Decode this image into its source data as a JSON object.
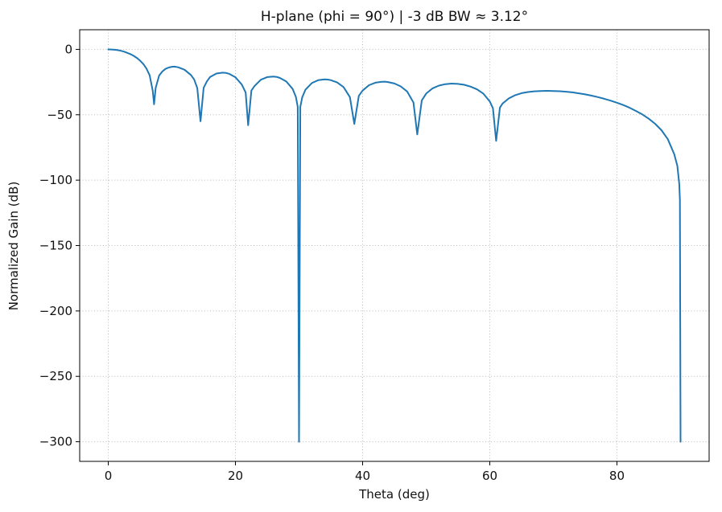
{
  "chart_data": {
    "type": "line",
    "title": "H-plane (phi = 90°)  |  -3 dB BW ≈ 3.12°",
    "xlabel": "Theta (deg)",
    "ylabel": "Normalized Gain (dB)",
    "xlim": [
      -4.5,
      94.5
    ],
    "ylim": [
      -315,
      15
    ],
    "xticks": [
      0,
      20,
      40,
      60,
      80
    ],
    "yticks": [
      0,
      -50,
      -100,
      -150,
      -200,
      -250,
      -300
    ],
    "grid": true,
    "legend": "none",
    "line_color": "#1f77b4",
    "series": [
      {
        "name": "H-plane normalized gain",
        "points": [
          [
            0,
            0
          ],
          [
            0.5,
            -0.1
          ],
          [
            1,
            -0.3
          ],
          [
            1.5,
            -0.6
          ],
          [
            2,
            -1.1
          ],
          [
            2.5,
            -1.8
          ],
          [
            3,
            -2.7
          ],
          [
            3.5,
            -3.7
          ],
          [
            4,
            -5.0
          ],
          [
            4.5,
            -6.6
          ],
          [
            5,
            -8.6
          ],
          [
            5.5,
            -11.2
          ],
          [
            6,
            -14.6
          ],
          [
            6.5,
            -19.8
          ],
          [
            7,
            -31.8
          ],
          [
            7.2,
            -42.0
          ],
          [
            7.45,
            -29.5
          ],
          [
            8,
            -20.0
          ],
          [
            8.5,
            -16.9
          ],
          [
            9,
            -14.9
          ],
          [
            9.5,
            -13.9
          ],
          [
            10,
            -13.3
          ],
          [
            10.4,
            -13.2
          ],
          [
            11,
            -13.7
          ],
          [
            12,
            -15.6
          ],
          [
            13,
            -19.6
          ],
          [
            13.5,
            -23.0
          ],
          [
            14,
            -29.6
          ],
          [
            14.5,
            -55.0
          ],
          [
            15,
            -29.4
          ],
          [
            15.5,
            -24.5
          ],
          [
            16,
            -21.2
          ],
          [
            17,
            -18.5
          ],
          [
            18,
            -17.8
          ],
          [
            18.5,
            -18.0
          ],
          [
            19,
            -18.7
          ],
          [
            20,
            -21.3
          ],
          [
            21,
            -26.9
          ],
          [
            21.6,
            -33.0
          ],
          [
            22,
            -58.0
          ],
          [
            22.5,
            -31.5
          ],
          [
            23,
            -28.1
          ],
          [
            24,
            -23.2
          ],
          [
            25,
            -21.2
          ],
          [
            26,
            -20.8
          ],
          [
            26.5,
            -21.1
          ],
          [
            27,
            -21.9
          ],
          [
            28,
            -24.6
          ],
          [
            29,
            -30.3
          ],
          [
            29.5,
            -36.3
          ],
          [
            29.8,
            -44.0
          ],
          [
            30,
            -300
          ],
          [
            30.2,
            -44.0
          ],
          [
            30.5,
            -36.6
          ],
          [
            31,
            -30.9
          ],
          [
            32,
            -25.8
          ],
          [
            33,
            -23.6
          ],
          [
            34,
            -23.0
          ],
          [
            34.5,
            -23.1
          ],
          [
            35,
            -23.5
          ],
          [
            36,
            -25.3
          ],
          [
            37,
            -28.8
          ],
          [
            38,
            -36.5
          ],
          [
            38.7,
            -57.0
          ],
          [
            39.4,
            -35.5
          ],
          [
            40,
            -31.5
          ],
          [
            41,
            -27.4
          ],
          [
            42,
            -25.5
          ],
          [
            43,
            -24.8
          ],
          [
            43.5,
            -24.7
          ],
          [
            44,
            -25.0
          ],
          [
            45,
            -26.1
          ],
          [
            46,
            -28.3
          ],
          [
            47,
            -32.2
          ],
          [
            48,
            -40.7
          ],
          [
            48.6,
            -65.0
          ],
          [
            49.3,
            -39.0
          ],
          [
            50,
            -33.8
          ],
          [
            51,
            -29.8
          ],
          [
            52,
            -27.7
          ],
          [
            53,
            -26.6
          ],
          [
            54,
            -26.2
          ],
          [
            55,
            -26.4
          ],
          [
            56,
            -27.1
          ],
          [
            57,
            -28.5
          ],
          [
            58,
            -30.6
          ],
          [
            59,
            -33.9
          ],
          [
            60,
            -39.8
          ],
          [
            60.5,
            -45.0
          ],
          [
            61,
            -70.0
          ],
          [
            61.6,
            -44.5
          ],
          [
            62,
            -41.5
          ],
          [
            63,
            -37.5
          ],
          [
            64,
            -35.0
          ],
          [
            65,
            -33.5
          ],
          [
            66,
            -32.6
          ],
          [
            67,
            -32.1
          ],
          [
            68,
            -31.8
          ],
          [
            69,
            -31.7
          ],
          [
            70,
            -31.8
          ],
          [
            71,
            -32.0
          ],
          [
            72,
            -32.4
          ],
          [
            73,
            -32.9
          ],
          [
            74,
            -33.6
          ],
          [
            75,
            -34.4
          ],
          [
            76,
            -35.4
          ],
          [
            77,
            -36.5
          ],
          [
            78,
            -37.8
          ],
          [
            79,
            -39.2
          ],
          [
            80,
            -40.8
          ],
          [
            81,
            -42.6
          ],
          [
            82,
            -44.7
          ],
          [
            83,
            -47.1
          ],
          [
            84,
            -49.8
          ],
          [
            85,
            -53.0
          ],
          [
            86,
            -56.9
          ],
          [
            87,
            -61.8
          ],
          [
            88,
            -68.7
          ],
          [
            89,
            -80.0
          ],
          [
            89.5,
            -89.0
          ],
          [
            89.8,
            -103.0
          ],
          [
            89.9,
            -115.0
          ],
          [
            90,
            -300
          ]
        ]
      }
    ]
  }
}
